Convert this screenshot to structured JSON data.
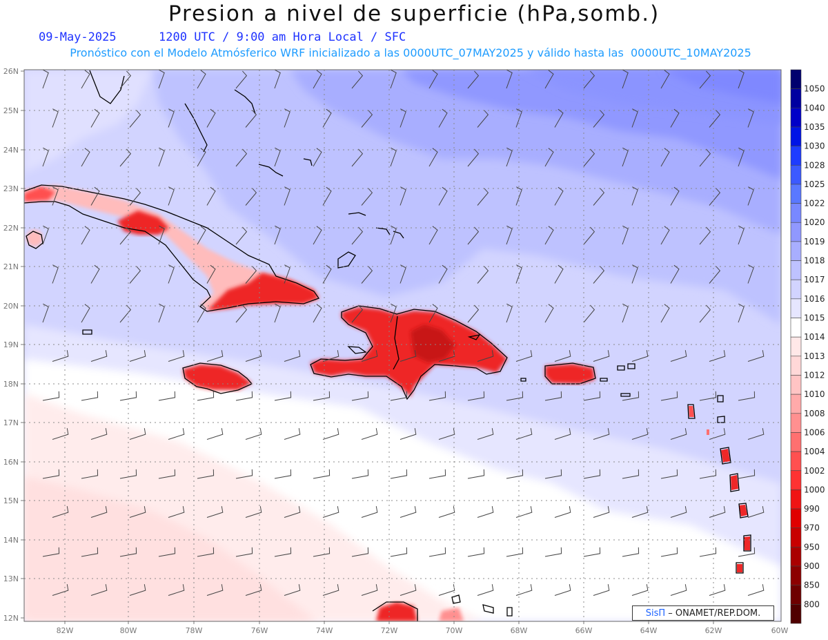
{
  "header": {
    "title": "Presion a nivel de superficie (hPa,somb.)",
    "date": "09-May-2025",
    "time_info": "1200 UTC / 9:00 am Hora Local / SFC",
    "model_info": "Pronóstico con el Modelo Atmósferico WRF inicializado a las 0000UTC_07MAY2025 y válido hasta las  0000UTC_10MAY2025"
  },
  "axes": {
    "lon_labels": [
      "82W",
      "80W",
      "78W",
      "76W",
      "74W",
      "72W",
      "70W",
      "68W",
      "66W",
      "64W",
      "62W",
      "60W"
    ],
    "lat_labels": [
      "26N",
      "25N",
      "24N",
      "23N",
      "22N",
      "21N",
      "20N",
      "19N",
      "18N",
      "17N",
      "16N",
      "15N",
      "14N",
      "13N",
      "12N"
    ]
  },
  "colorbar": {
    "levels": [
      {
        "label": "1050",
        "color": "#00006e"
      },
      {
        "label": "1040",
        "color": "#0000a0"
      },
      {
        "label": "1035",
        "color": "#0000c8"
      },
      {
        "label": "1030",
        "color": "#0014e6"
      },
      {
        "label": "1028",
        "color": "#1e3cff"
      },
      {
        "label": "1025",
        "color": "#3c5aff"
      },
      {
        "label": "1022",
        "color": "#5a78ff"
      },
      {
        "label": "1020",
        "color": "#7888ff"
      },
      {
        "label": "1019",
        "color": "#9098ff"
      },
      {
        "label": "1018",
        "color": "#a8aeff"
      },
      {
        "label": "1017",
        "color": "#bec2ff"
      },
      {
        "label": "1016",
        "color": "#d2d4ff"
      },
      {
        "label": "1015",
        "color": "#e6e6ff"
      },
      {
        "label": "1014",
        "color": "#ffffff"
      },
      {
        "label": "1013",
        "color": "#ffe8e8"
      },
      {
        "label": "1012",
        "color": "#ffd8d8"
      },
      {
        "label": "1010",
        "color": "#ffc4c4"
      },
      {
        "label": "1008",
        "color": "#ffaaaa"
      },
      {
        "label": "1006",
        "color": "#ff9090"
      },
      {
        "label": "1004",
        "color": "#ff7070"
      },
      {
        "label": "1002",
        "color": "#ff5050"
      },
      {
        "label": "1000",
        "color": "#ff3232"
      },
      {
        "label": "990",
        "color": "#f01414"
      },
      {
        "label": "970",
        "color": "#e00000"
      },
      {
        "label": "950",
        "color": "#c80000"
      },
      {
        "label": "900",
        "color": "#aa0000"
      },
      {
        "label": "850",
        "color": "#8c0000"
      },
      {
        "label": "800",
        "color": "#6e0000"
      },
      {
        "label": "",
        "color": "#500000"
      }
    ]
  },
  "credit": {
    "brand": "SisΠ",
    "text": " – ONAMET/REP.DOM."
  }
}
